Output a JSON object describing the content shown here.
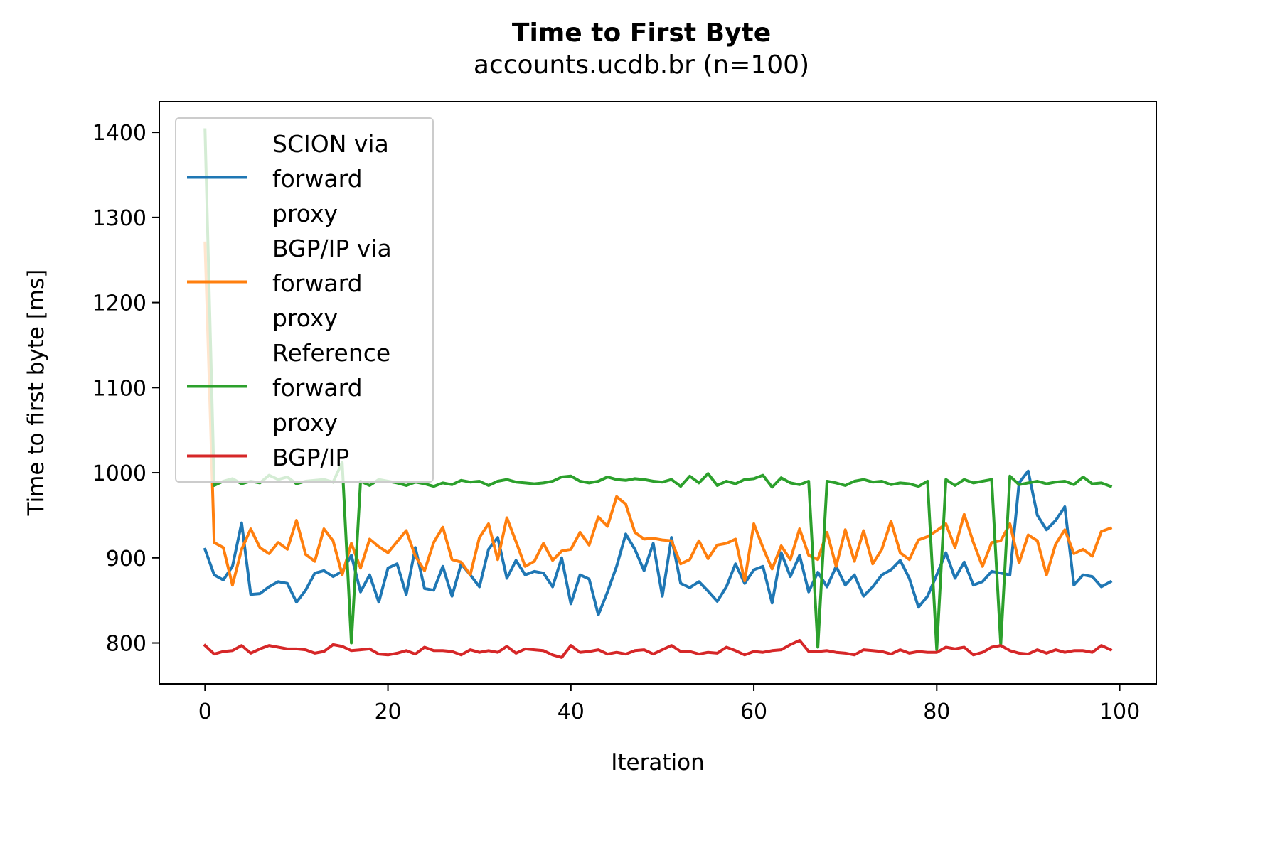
{
  "chart_data": {
    "type": "line",
    "title": "Time to First Byte",
    "subtitle": "accounts.ucdb.br (n=100)",
    "xlabel": "Iteration",
    "ylabel": "Time to first byte [ms]",
    "xlim": [
      -5,
      104
    ],
    "ylim": [
      752,
      1436
    ],
    "xticks": [
      0,
      20,
      40,
      60,
      80,
      100
    ],
    "yticks": [
      800,
      900,
      1000,
      1100,
      1200,
      1300,
      1400
    ],
    "grid": false,
    "legend_position": "top-left",
    "x": [
      0,
      1,
      2,
      3,
      4,
      5,
      6,
      7,
      8,
      9,
      10,
      11,
      12,
      13,
      14,
      15,
      16,
      17,
      18,
      19,
      20,
      21,
      22,
      23,
      24,
      25,
      26,
      27,
      28,
      29,
      30,
      31,
      32,
      33,
      34,
      35,
      36,
      37,
      38,
      39,
      40,
      41,
      42,
      43,
      44,
      45,
      46,
      47,
      48,
      49,
      50,
      51,
      52,
      53,
      54,
      55,
      56,
      57,
      58,
      59,
      60,
      61,
      62,
      63,
      64,
      65,
      66,
      67,
      68,
      69,
      70,
      71,
      72,
      73,
      74,
      75,
      76,
      77,
      78,
      79,
      80,
      81,
      82,
      83,
      84,
      85,
      86,
      87,
      88,
      89,
      90,
      91,
      92,
      93,
      94,
      95,
      96,
      97,
      98,
      99
    ],
    "series": [
      {
        "name": "SCION via forward proxy",
        "color": "#1f77b4",
        "legend_lines": [
          "SCION via",
          "forward",
          "proxy"
        ],
        "values": [
          910,
          880,
          874,
          890,
          941,
          857,
          858,
          866,
          872,
          870,
          848,
          862,
          882,
          885,
          878,
          884,
          903,
          860,
          880,
          848,
          888,
          893,
          857,
          912,
          864,
          862,
          890,
          855,
          893,
          880,
          866,
          910,
          924,
          876,
          897,
          880,
          884,
          882,
          866,
          900,
          846,
          880,
          875,
          833,
          860,
          890,
          928,
          910,
          885,
          917,
          855,
          924,
          870,
          865,
          872,
          861,
          849,
          866,
          893,
          870,
          886,
          890,
          847,
          906,
          878,
          903,
          860,
          883,
          866,
          890,
          868,
          880,
          855,
          866,
          880,
          886,
          897,
          876,
          842,
          855,
          880,
          906,
          876,
          895,
          868,
          872,
          884,
          882,
          880,
          988,
          1002,
          950,
          933,
          944,
          960,
          868,
          880,
          878,
          866,
          872
        ]
      },
      {
        "name": "BGP/IP via forward proxy",
        "color": "#ff7f0e",
        "legend_lines": [
          "BGP/IP via",
          "forward",
          "proxy"
        ],
        "values": [
          1270,
          918,
          912,
          868,
          910,
          934,
          912,
          905,
          918,
          910,
          944,
          904,
          896,
          934,
          920,
          880,
          917,
          888,
          922,
          913,
          906,
          919,
          932,
          902,
          885,
          918,
          936,
          898,
          895,
          880,
          924,
          940,
          898,
          947,
          919,
          890,
          896,
          917,
          897,
          908,
          910,
          930,
          915,
          948,
          937,
          972,
          963,
          930,
          922,
          923,
          921,
          920,
          893,
          898,
          920,
          899,
          915,
          917,
          922,
          873,
          940,
          912,
          887,
          914,
          898,
          934,
          903,
          898,
          930,
          890,
          933,
          896,
          932,
          893,
          910,
          943,
          906,
          898,
          921,
          925,
          932,
          940,
          912,
          951,
          918,
          890,
          918,
          920,
          940,
          894,
          927,
          920,
          880,
          916,
          933,
          905,
          910,
          902,
          931,
          935
        ]
      },
      {
        "name": "Reference forward proxy",
        "color": "#2ca02c",
        "legend_lines": [
          "Reference",
          "forward",
          "proxy"
        ],
        "values": [
          1403,
          985,
          990,
          993,
          987,
          990,
          988,
          997,
          992,
          995,
          987,
          990,
          991,
          992,
          989,
          1012,
          800,
          990,
          985,
          992,
          990,
          988,
          985,
          989,
          987,
          984,
          988,
          986,
          991,
          989,
          990,
          985,
          990,
          992,
          989,
          988,
          987,
          988,
          990,
          995,
          996,
          990,
          988,
          990,
          995,
          992,
          991,
          993,
          992,
          990,
          989,
          992,
          984,
          996,
          988,
          999,
          985,
          990,
          987,
          992,
          993,
          997,
          983,
          994,
          988,
          986,
          990,
          795,
          990,
          988,
          985,
          990,
          992,
          989,
          990,
          986,
          988,
          987,
          984,
          990,
          792,
          992,
          985,
          992,
          988,
          990,
          992,
          798,
          996,
          986,
          988,
          990,
          987,
          989,
          990,
          986,
          995,
          987,
          988,
          984
        ]
      },
      {
        "name": "BGP/IP",
        "color": "#d62728",
        "legend_lines": [
          "BGP/IP"
        ],
        "values": [
          797,
          787,
          790,
          791,
          797,
          788,
          793,
          797,
          795,
          793,
          793,
          792,
          788,
          790,
          798,
          796,
          791,
          792,
          793,
          787,
          786,
          788,
          791,
          787,
          795,
          791,
          791,
          790,
          786,
          792,
          789,
          791,
          789,
          796,
          788,
          793,
          792,
          791,
          786,
          783,
          797,
          789,
          790,
          792,
          787,
          789,
          787,
          791,
          792,
          787,
          792,
          797,
          790,
          790,
          787,
          789,
          788,
          795,
          791,
          786,
          790,
          789,
          791,
          792,
          798,
          803,
          790,
          790,
          791,
          789,
          788,
          786,
          792,
          791,
          790,
          787,
          792,
          788,
          790,
          789,
          789,
          795,
          793,
          795,
          786,
          789,
          795,
          797,
          791,
          788,
          787,
          792,
          788,
          792,
          789,
          791,
          791,
          789,
          797,
          792
        ]
      }
    ]
  }
}
